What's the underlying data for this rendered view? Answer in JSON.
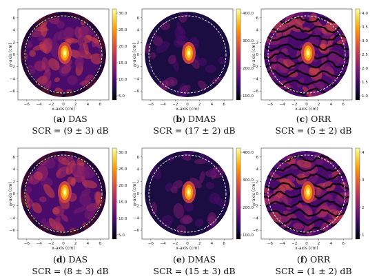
{
  "axis": {
    "xlabel": "x-axis (cm)",
    "ylabel": "y-axis (cm)",
    "xticks": [
      "−6",
      "−4",
      "−2",
      "0",
      "2",
      "4",
      "6"
    ],
    "yticks": [
      "6",
      "4",
      "2",
      "0",
      "−2",
      "−4",
      "−6"
    ]
  },
  "panels": [
    {
      "id": "a",
      "name": "DAS",
      "scr_text": "SCR = (9 ± 3) dB",
      "colorbar": [
        "30.0",
        "25.0",
        "20.0",
        "15.0",
        "10.0",
        "5.0"
      ],
      "style": "das",
      "seed": 1
    },
    {
      "id": "b",
      "name": "DMAS",
      "scr_text": "SCR = (17 ± 2) dB",
      "colorbar": [
        "400.0",
        "300.0",
        "200.0",
        "100.0"
      ],
      "style": "dmas",
      "seed": 2
    },
    {
      "id": "c",
      "name": "ORR",
      "scr_text": "SCR = (5 ± 2) dB",
      "colorbar": [
        "4.0",
        "3.5",
        "3.0",
        "2.5",
        "2.0",
        "1.5",
        "1.0"
      ],
      "style": "orr",
      "seed": 3
    },
    {
      "id": "d",
      "name": "DAS",
      "scr_text": "SCR = (8 ± 3) dB",
      "colorbar": [
        "30.0",
        "25.0",
        "20.0",
        "15.0",
        "10.0",
        "5.0"
      ],
      "style": "das",
      "seed": 4
    },
    {
      "id": "e",
      "name": "DMAS",
      "scr_text": "SCR = (15 ± 3) dB",
      "colorbar": [
        "400.0",
        "300.0",
        "200.0",
        "100.0"
      ],
      "style": "dmas",
      "seed": 5
    },
    {
      "id": "f",
      "name": "ORR",
      "scr_text": "SCR = (1 ± 2) dB",
      "colorbar": [
        "4",
        "3",
        "2",
        "1"
      ],
      "style": "orr",
      "seed": 6
    }
  ],
  "colors": {
    "cmap": [
      "#000004",
      "#1b0c41",
      "#4a0c6b",
      "#781c6d",
      "#a52c60",
      "#cf4446",
      "#ed6925",
      "#fb9b06",
      "#f7d13d",
      "#fcffa4"
    ]
  }
}
